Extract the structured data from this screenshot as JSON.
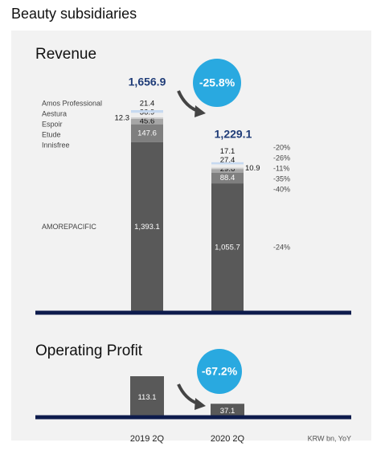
{
  "title": "Beauty subsidiaries",
  "chart_data": [
    {
      "type": "stacked-bar",
      "title": "Revenue",
      "series": [
        {
          "name": "AMOREPACIFIC",
          "color": "#595959",
          "values": [
            1393.1,
            1055.7
          ],
          "value_labels": [
            "1,393.1",
            "1,055.7"
          ],
          "yoy": "-24%"
        },
        {
          "name": "Innisfree",
          "color": "#7f7f7f",
          "values": [
            147.6,
            88.4
          ],
          "yoy": "-40%"
        },
        {
          "name": "Etude",
          "color": "#a6a6a6",
          "values": [
            45.6,
            29.6
          ],
          "yoy": "-35%"
        },
        {
          "name": "Espoir",
          "color": "#d0d0d0",
          "values": [
            12.3,
            10.9
          ],
          "yoy": "-11%"
        },
        {
          "name": "Aestura",
          "color": "#eeeeee",
          "values": [
            36.9,
            27.4
          ],
          "yoy": "-26%"
        },
        {
          "name": "Amos Professional",
          "color": "#c6d9f0",
          "values": [
            21.4,
            17.1
          ],
          "yoy": "-20%"
        }
      ],
      "totals": [
        1656.9,
        1229.1
      ],
      "total_labels": [
        "1,656.9",
        "1,229.1"
      ],
      "change": "-25.8%"
    },
    {
      "type": "bar",
      "title": "Operating Profit",
      "categories": [
        "2019 2Q",
        "2020 2Q"
      ],
      "values": [
        113.1,
        37.1
      ],
      "color": "#595959",
      "change": "-67.2%",
      "note": "KRW bn, YoY"
    }
  ]
}
